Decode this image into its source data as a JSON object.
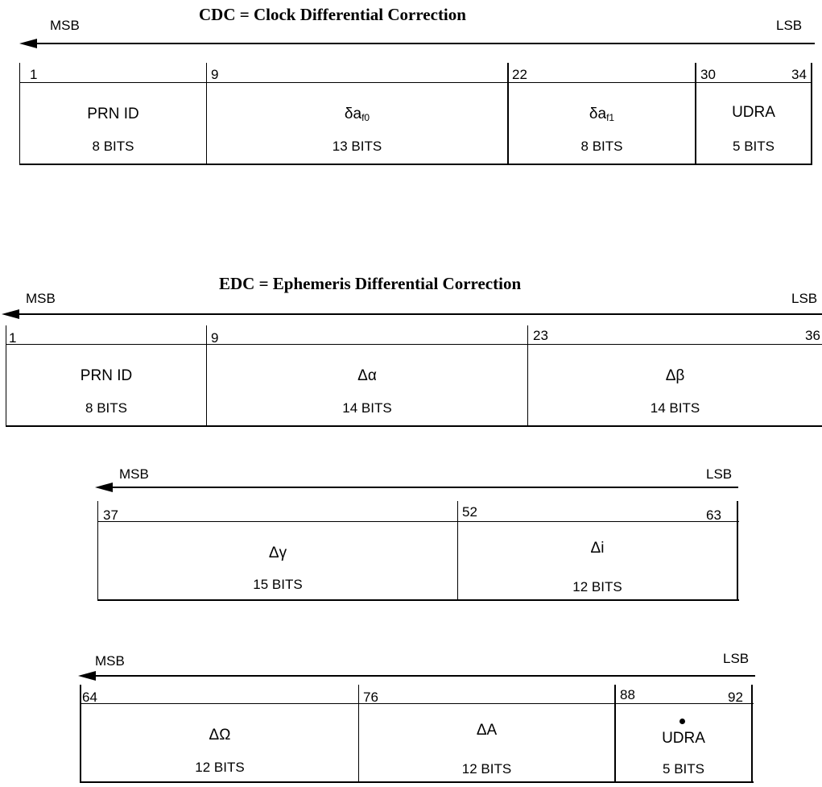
{
  "cdc": {
    "title": "CDC = Clock Differential Correction",
    "msb": "MSB",
    "lsb": "LSB",
    "bits": {
      "b1": "1",
      "b2": "9",
      "b3": "22",
      "b4": "30",
      "b5": "34"
    },
    "fields": [
      {
        "name": "PRN ID",
        "bits": "8 BITS"
      },
      {
        "symbol": "δa",
        "sub": "f0",
        "bits": "13 BITS"
      },
      {
        "symbol": "δa",
        "sub": "f1",
        "bits": "8 BITS"
      },
      {
        "name": "UDRA",
        "bits": "5 BITS"
      }
    ]
  },
  "edc": {
    "title": "EDC = Ephemeris Differential Correction",
    "row1": {
      "msb": "MSB",
      "lsb": "LSB",
      "bits": {
        "b1": "1",
        "b2": "9",
        "b3": "23",
        "b4": "36"
      },
      "fields": [
        {
          "name": "PRN ID",
          "bits": "8 BITS"
        },
        {
          "name": "Δα",
          "bits": "14 BITS"
        },
        {
          "name": "Δβ",
          "bits": "14 BITS"
        }
      ]
    },
    "row2": {
      "msb": "MSB",
      "lsb": "LSB",
      "bits": {
        "b1": "37",
        "b2": "52",
        "b3": "63"
      },
      "fields": [
        {
          "name": "Δγ",
          "bits": "15 BITS"
        },
        {
          "name": "Δi",
          "bits": "12 BITS"
        }
      ]
    },
    "row3": {
      "msb": "MSB",
      "lsb": "LSB",
      "bits": {
        "b1": "64",
        "b2": "76",
        "b3": "88",
        "b4": "92"
      },
      "fields": [
        {
          "name": "ΔΩ",
          "bits": "12 BITS"
        },
        {
          "name": "ΔA",
          "bits": "12 BITS"
        },
        {
          "name": "UDRA",
          "bits": "5 BITS"
        }
      ]
    }
  }
}
